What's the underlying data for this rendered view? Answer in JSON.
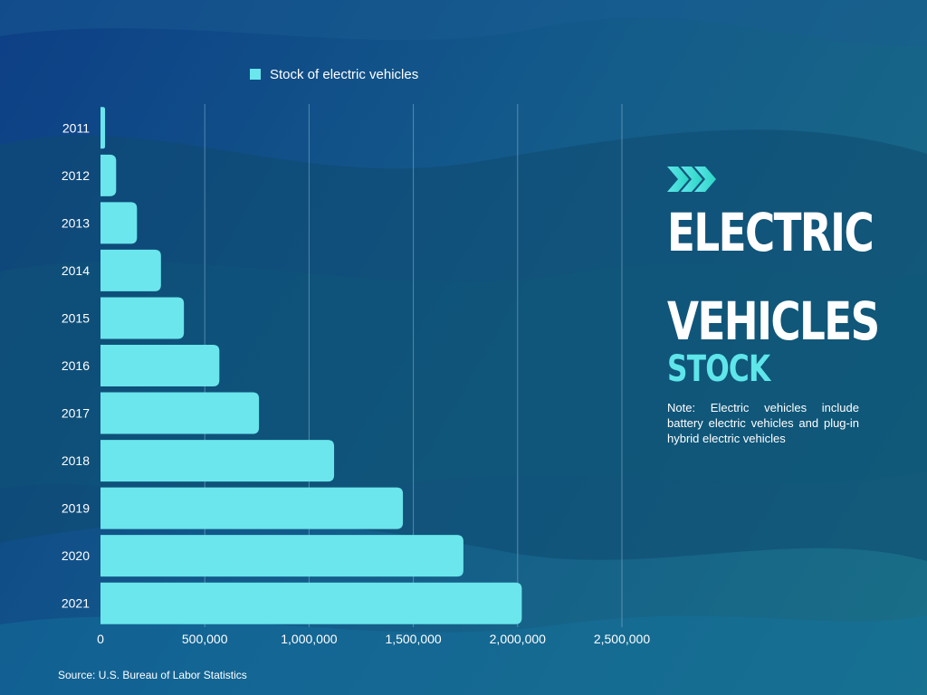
{
  "chart_data": {
    "type": "bar",
    "orientation": "horizontal",
    "categories": [
      "2011",
      "2012",
      "2013",
      "2014",
      "2015",
      "2016",
      "2017",
      "2018",
      "2019",
      "2020",
      "2021"
    ],
    "series": [
      {
        "name": "Stock of electric vehicles",
        "values": [
          22000,
          75000,
          175000,
          290000,
          400000,
          570000,
          760000,
          1120000,
          1450000,
          1740000,
          2020000
        ]
      }
    ],
    "x_ticks": [
      0,
      500000,
      1000000,
      1500000,
      2000000,
      2500000
    ],
    "x_tick_labels": [
      "0",
      "500,000",
      "1,000,000",
      "1,500,000",
      "2,000,000",
      "2,500,000"
    ],
    "xlim": [
      0,
      2500000
    ],
    "grid": true,
    "legend_position": "top"
  },
  "title": {
    "line1": "ELECTRIC",
    "line2": "VEHICLES",
    "line3": "STOCK"
  },
  "note": "Note: Electric vehicles include battery electric vehicles and plug-in hybrid electric vehicles",
  "source": "Source: U.S. Bureau of Labor Statistics",
  "colors": {
    "bar": "#6ae6ec",
    "accent": "#5ee6ea",
    "text": "#ffffff",
    "grid": "#8fb6cf"
  }
}
